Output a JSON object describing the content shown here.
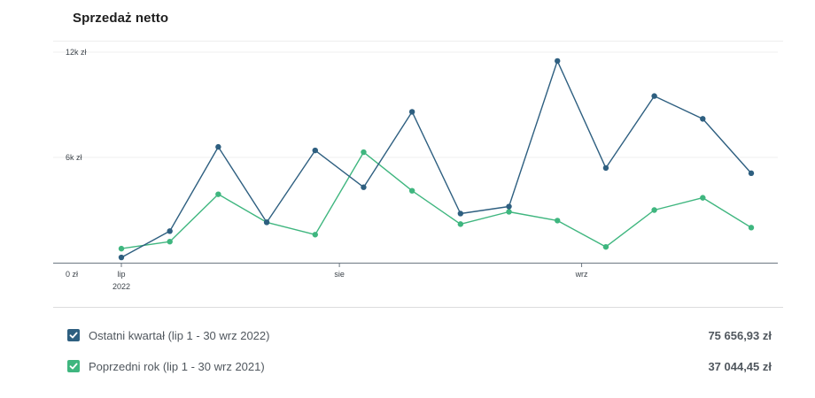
{
  "card": {
    "title": "Sprzedaż netto"
  },
  "chart_data": {
    "type": "line",
    "ylim": [
      0,
      12000
    ],
    "y_ticks": [
      {
        "value": 0,
        "label": "0 zł"
      },
      {
        "value": 6000,
        "label": "6k zł"
      },
      {
        "value": 12000,
        "label": "12k zł"
      }
    ],
    "x_ticks": [
      {
        "index": 0,
        "label": "lip",
        "sublabel": "2022"
      },
      {
        "index": 4.5,
        "label": "sie",
        "sublabel": ""
      },
      {
        "index": 9.5,
        "label": "wrz",
        "sublabel": ""
      }
    ],
    "series": [
      {
        "name": "Ostatni kwartał (lip 1 - 30 wrz 2022)",
        "color": "#2e5f80",
        "values": [
          300,
          1800,
          6600,
          2300,
          6400,
          4300,
          8600,
          2800,
          3200,
          11500,
          5400,
          9500,
          8200,
          5100
        ]
      },
      {
        "name": "Poprzedni rok (lip 1 - 30 wrz 2021)",
        "color": "#3fb67f",
        "values": [
          800,
          1200,
          3900,
          2300,
          1600,
          6300,
          4100,
          2200,
          2900,
          2400,
          900,
          3000,
          3700,
          2000
        ]
      }
    ]
  },
  "legend": {
    "items": [
      {
        "label": "Ostatni kwartał (lip 1 - 30 wrz 2022)",
        "total": "75 656,93 zł",
        "color": "#2e5f80"
      },
      {
        "label": "Poprzedni rok (lip 1 - 30 wrz 2021)",
        "total": "37 044,45 zł",
        "color": "#3fb67f"
      }
    ]
  }
}
